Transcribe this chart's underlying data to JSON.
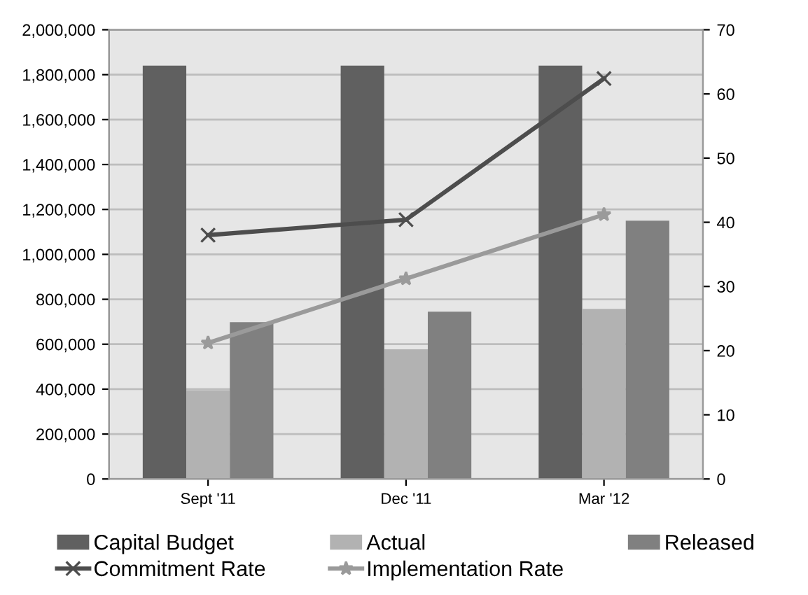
{
  "chart_data": {
    "type": "bar",
    "categories": [
      "Sept '11",
      "Dec '11",
      "Mar '12"
    ],
    "series": [
      {
        "name": "Capital Budget",
        "color": "#606060",
        "values": [
          1840000,
          1840000,
          1840000
        ]
      },
      {
        "name": "Actual",
        "color": "#b2b2b2",
        "values": [
          395000,
          577000,
          757000
        ]
      },
      {
        "name": "Released",
        "color": "#808080",
        "values": [
          698000,
          745000,
          1150000
        ]
      },
      {
        "name": "Commitment Rate",
        "type": "line",
        "axis": "y2",
        "marker": "cross",
        "color": "#4d4d4d",
        "values": [
          38.0,
          40.4,
          62.4
        ]
      },
      {
        "name": "Implementation Rate",
        "type": "line",
        "axis": "y2",
        "marker": "star",
        "color": "#9a9a9a",
        "values": [
          21.2,
          31.2,
          41.2
        ]
      }
    ],
    "ylim": [
      0,
      2000000
    ],
    "yticks": [
      {
        "value": 0,
        "label": "0"
      },
      {
        "value": 200000,
        "label": "200,000"
      },
      {
        "value": 400000,
        "label": "400,000"
      },
      {
        "value": 600000,
        "label": "600,000"
      },
      {
        "value": 800000,
        "label": "800,000"
      },
      {
        "value": 1000000,
        "label": "1,000,000"
      },
      {
        "value": 1200000,
        "label": "1,200,000"
      },
      {
        "value": 1400000,
        "label": "1,400,000"
      },
      {
        "value": 1600000,
        "label": "1,600,000"
      },
      {
        "value": 1800000,
        "label": "1,800,000"
      },
      {
        "value": 2000000,
        "label": "2,000,000"
      }
    ],
    "y2lim": [
      0,
      70
    ],
    "y2ticks": [
      0,
      10,
      20,
      30,
      40,
      50,
      60,
      70
    ],
    "grid": "y",
    "legend": "bottom"
  }
}
